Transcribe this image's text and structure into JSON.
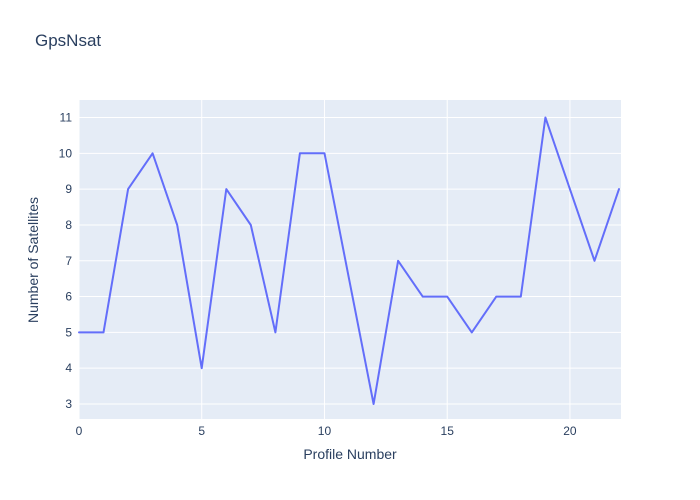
{
  "title": "GpsNsat",
  "colors": {
    "line": "#636efa",
    "plot_background": "#e5ecf6",
    "grid": "#ffffff",
    "text": "#2a3f5f",
    "page_background": "#ffffff"
  },
  "chart_data": {
    "type": "line",
    "title": "GpsNsat",
    "xlabel": "Profile Number",
    "ylabel": "Number of Satellites",
    "x": [
      0,
      1,
      2,
      3,
      4,
      5,
      6,
      7,
      8,
      9,
      10,
      11,
      12,
      13,
      14,
      15,
      16,
      17,
      18,
      19,
      20,
      21,
      22
    ],
    "y": [
      5,
      5,
      9,
      10,
      8,
      4,
      9,
      8,
      5,
      10,
      10,
      6.5,
      3,
      7,
      6,
      6,
      5,
      6,
      6,
      11,
      9,
      7,
      9
    ],
    "x_ticks": [
      0,
      5,
      10,
      15,
      20
    ],
    "y_ticks": [
      3,
      4,
      5,
      6,
      7,
      8,
      9,
      10,
      11
    ],
    "xlim": [
      0,
      22.08
    ],
    "ylim": [
      2.58,
      11.49
    ],
    "grid": true,
    "legend_position": "none"
  }
}
